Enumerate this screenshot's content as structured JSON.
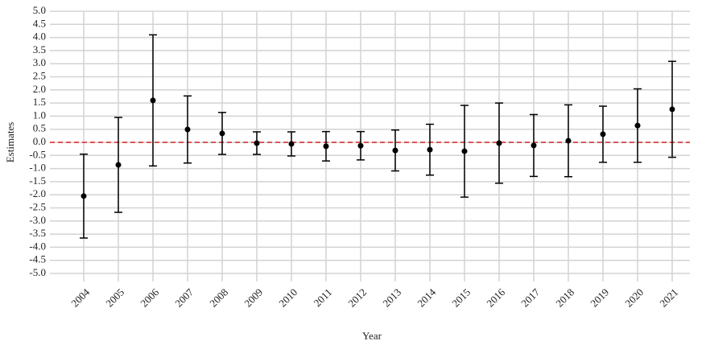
{
  "chart_data": {
    "type": "errorbar",
    "x_label": "Year",
    "y_label": "Estimates",
    "categories": [
      "2004",
      "2005",
      "2006",
      "2007",
      "2008",
      "2009",
      "2010",
      "2011",
      "2012",
      "2013",
      "2014",
      "2015",
      "2016",
      "2017",
      "2018",
      "2019",
      "2020",
      "2021"
    ],
    "series": [
      {
        "color": "#000000",
        "values": [
          -2.05,
          -0.86,
          1.6,
          0.49,
          0.34,
          -0.03,
          -0.06,
          -0.15,
          -0.13,
          -0.31,
          -0.28,
          -0.34,
          -0.03,
          -0.12,
          0.06,
          0.31,
          0.64,
          1.26
        ],
        "errors": [
          1.6,
          1.81,
          2.5,
          1.28,
          0.8,
          0.43,
          0.46,
          0.56,
          0.54,
          0.78,
          0.97,
          1.75,
          1.53,
          1.18,
          1.37,
          1.07,
          1.4,
          1.83
        ]
      }
    ],
    "reference_line": {
      "value": 0,
      "color": "#d62728"
    },
    "ylim": [
      -5,
      5
    ],
    "yticks": [
      {
        "value": -5,
        "label": "-5.0"
      },
      -4.5,
      {
        "value": -4,
        "label": "-4.0"
      },
      -3.5,
      {
        "value": -3,
        "label": "-3.0"
      },
      -2.5,
      {
        "value": -2,
        "label": "-2.0"
      },
      -1.5,
      {
        "value": -1,
        "label": "-1.0"
      },
      -0.5,
      {
        "value": 0,
        "label": "0.0"
      },
      0.5,
      {
        "value": 1,
        "label": "1.0"
      },
      1.5,
      {
        "value": 2,
        "label": "2.0"
      },
      2.5,
      {
        "value": 3,
        "label": "3.0"
      },
      3.5,
      {
        "value": 4,
        "label": "4.0"
      },
      4.5,
      {
        "value": 5,
        "label": "5.0"
      }
    ],
    "grid": true
  }
}
